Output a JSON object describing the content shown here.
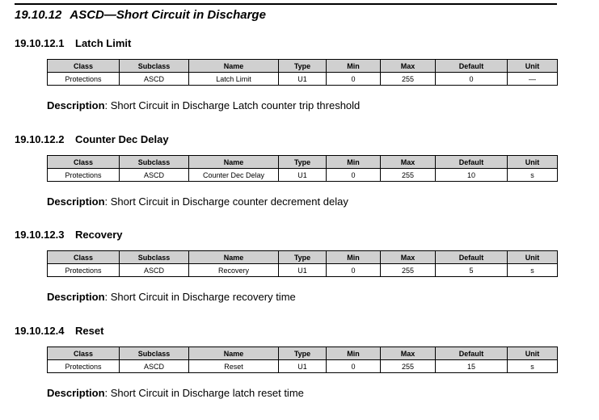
{
  "heading": {
    "number": "19.10.12",
    "title": "ASCD—Short Circuit in Discharge"
  },
  "columns": [
    "Class",
    "Subclass",
    "Name",
    "Type",
    "Min",
    "Max",
    "Default",
    "Unit"
  ],
  "description_label": "Description",
  "sections": [
    {
      "number": "19.10.12.1",
      "title": "Latch Limit",
      "row": [
        "Protections",
        "ASCD",
        "Latch Limit",
        "U1",
        "0",
        "255",
        "0",
        "—"
      ],
      "description": ": Short Circuit in Discharge Latch counter trip threshold"
    },
    {
      "number": "19.10.12.2",
      "title": "Counter Dec Delay",
      "row": [
        "Protections",
        "ASCD",
        "Counter Dec Delay",
        "U1",
        "0",
        "255",
        "10",
        "s"
      ],
      "description": ": Short Circuit in Discharge counter decrement delay"
    },
    {
      "number": "19.10.12.3",
      "title": "Recovery",
      "row": [
        "Protections",
        "ASCD",
        "Recovery",
        "U1",
        "0",
        "255",
        "5",
        "s"
      ],
      "description": ": Short Circuit in Discharge recovery time"
    },
    {
      "number": "19.10.12.4",
      "title": "Reset",
      "row": [
        "Protections",
        "ASCD",
        "Reset",
        "U1",
        "0",
        "255",
        "15",
        "s"
      ],
      "description": ": Short Circuit in Discharge latch reset time"
    }
  ]
}
